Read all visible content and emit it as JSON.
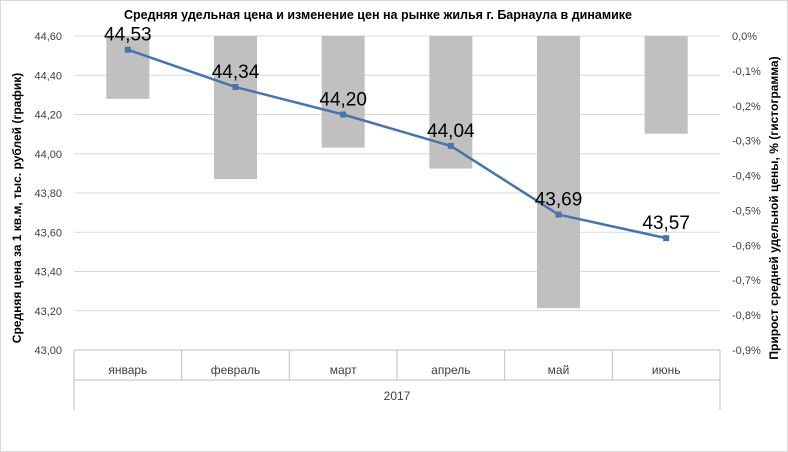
{
  "chart_data": {
    "type": "bar+line",
    "title": "Средняя удельная цена и изменение цен  на рынке жилья г. Барнаула в динамике",
    "group_label": "2017",
    "categories": [
      "январь",
      "февраль",
      "март",
      "апрель",
      "май",
      "июнь"
    ],
    "line_series": {
      "values": [
        44.53,
        44.34,
        44.2,
        44.04,
        43.69,
        43.57
      ],
      "labels": [
        "44,53",
        "44,34",
        "44,20",
        "44,04",
        "43,69",
        "43,57"
      ],
      "color": "#4a74a8"
    },
    "bar_series": {
      "values": [
        -0.18,
        -0.41,
        -0.32,
        -0.38,
        -0.78,
        -0.28
      ],
      "color": "#c0c0c0"
    },
    "y_left": {
      "label": "Средняя цена за 1 кв.м, тыс. рублей (график)",
      "ylim": [
        43.0,
        44.6
      ],
      "ticks": [
        43.0,
        43.2,
        43.4,
        43.6,
        43.8,
        44.0,
        44.2,
        44.4,
        44.6
      ],
      "tick_labels": [
        "43,00",
        "43,20",
        "43,40",
        "43,60",
        "43,80",
        "44,00",
        "44,20",
        "44,40",
        "44,60"
      ]
    },
    "y_right": {
      "label": "Прирост средней удельной цены, % (гистограмма)",
      "ylim": [
        -0.9,
        0.0
      ],
      "ticks": [
        0.0,
        -0.1,
        -0.2,
        -0.3,
        -0.4,
        -0.5,
        -0.6,
        -0.7,
        -0.8,
        -0.9
      ],
      "tick_labels": [
        "0,0%",
        "-0,1%",
        "-0,2%",
        "-0,3%",
        "-0,4%",
        "-0,5%",
        "-0,6%",
        "-0,7%",
        "-0,8%",
        "-0,9%"
      ]
    },
    "grid": true,
    "legend": "none"
  }
}
